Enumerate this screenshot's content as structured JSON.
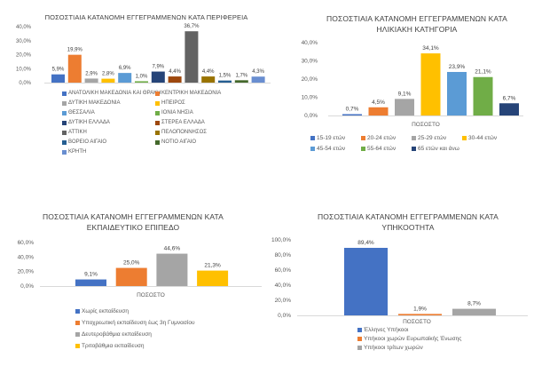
{
  "chart_data": [
    {
      "id": "region",
      "type": "bar",
      "title": "ΠΟΣΟΣΤΙΑΙΑ ΚΑΤΑΝΟΜΗ ΕΓΓΕΓΡΑΜΜΕΝΩΝ ΚΑΤΑ ΠΕΡΙΦΕΡΕΙΑ",
      "xlabel": "",
      "ylabel": "",
      "ylim": [
        0,
        40
      ],
      "yticks": [
        "0,0%",
        "10,0%",
        "20,0%",
        "30,0%",
        "40,0%"
      ],
      "grid": false,
      "legend_placement": "bottom",
      "categories": [
        "ΑΝΑΤΟΛΙΚΗ ΜΑΚΕΔΟΝΙΑ ΚΑΙ ΘΡΑΚΗ",
        "ΚΕΝΤΡΙΚΗ ΜΑΚΕΔΟΝΙΑ",
        "ΔΥΤΙΚΗ ΜΑΚΕΔΟΝΙΑ",
        "ΗΠΕΙΡΟΣ",
        "ΘΕΣΣΑΛΙΑ",
        "ΙΟΝΙΑ ΝΗΣΙΑ",
        "ΔΥΤΙΚΗ ΕΛΛΑΔΑ",
        "ΣΤΕΡΕΑ ΕΛΛΑΔΑ",
        "ΑΤΤΙΚΗ",
        "ΠΕΛΟΠΟΝΝΗΣΟΣ",
        "ΒΟΡΕΙΟ ΑΙΓΑΙΟ",
        "ΝΟΤΙΟ ΑΙΓΑΙΟ",
        "ΚΡΗΤΗ"
      ],
      "values": [
        5.9,
        19.9,
        2.9,
        2.8,
        6.9,
        1.0,
        7.9,
        4.4,
        36.7,
        4.4,
        1.5,
        1.7,
        4.3
      ],
      "labels": [
        "5,9%",
        "19,9%",
        "2,9%",
        "2,8%",
        "6,9%",
        "1,0%",
        "7,9%",
        "4,4%",
        "36,7%",
        "4,4%",
        "1,5%",
        "1,7%",
        "4,3%"
      ],
      "colors": [
        "#4472c4",
        "#ed7d31",
        "#a5a5a5",
        "#ffc000",
        "#5b9bd5",
        "#70ad47",
        "#264478",
        "#9e480e",
        "#636363",
        "#997300",
        "#255e91",
        "#43682b",
        "#698ed0"
      ]
    },
    {
      "id": "age",
      "type": "bar",
      "title": "ΠΟΣΟΣΤΙΑΙΑ ΚΑΤΑΝΟΜΗ ΕΓΓΕΓΡΑΜΜΕΝΩΝ ΚΑΤΑ ΗΛΙΚΙΑΚΗ ΚΑΤΗΓΟΡΙΑ",
      "title_lines": [
        "ΠΟΣΟΣΤΙΑΙΑ ΚΑΤΑΝΟΜΗ ΕΓΓΕΓΡΑΜΜΕΝΩΝ  ΚΑΤΑ",
        "ΗΛΙΚΙΑΚΗ ΚΑΤΗΓΟΡΙΑ"
      ],
      "xlabel": "ΠΟΣΟΣΤΟ",
      "ylabel": "",
      "ylim": [
        0,
        40
      ],
      "yticks": [
        "0,0%",
        "10,0%",
        "20,0%",
        "30,0%",
        "40,0%"
      ],
      "grid": false,
      "legend_placement": "bottom",
      "categories": [
        "15-19 ετών",
        "20-24 ετών",
        "25-29 ετών",
        "30-44 ετών",
        "45-54 ετών",
        "55-64 ετών",
        "65 ετών και άνω"
      ],
      "values": [
        0.7,
        4.5,
        9.1,
        34.1,
        23.9,
        21.1,
        6.7
      ],
      "labels": [
        "0,7%",
        "4,5%",
        "9,1%",
        "34,1%",
        "23,9%",
        "21,1%",
        "6,7%"
      ],
      "colors": [
        "#4472c4",
        "#ed7d31",
        "#a5a5a5",
        "#ffc000",
        "#5b9bd5",
        "#70ad47",
        "#264478"
      ]
    },
    {
      "id": "education",
      "type": "bar",
      "title": "ΠΟΣΟΣΤΙΑΙΑ ΚΑΤΑΝΟΜΗ ΕΓΓΕΓΡΑΜΜΕΝΩΝ ΚΑΤΑ ΕΚΠΑΙΔΕΥΤΙΚΟ ΕΠΙΠΕΔΟ",
      "title_lines": [
        "ΠΟΣΟΣΤΙΑΙΑ ΚΑΤΑΝΟΜΗ ΕΓΓΕΓΡΑΜΜΕΝΩΝ ΚΑΤΑ",
        "ΕΚΠΑΙΔΕΥΤΙΚΟ ΕΠΙΠΕΔΟ"
      ],
      "xlabel": "ΠΟΣΟΣΤΟ",
      "ylabel": "",
      "ylim": [
        0,
        60
      ],
      "yticks": [
        "0,0%",
        "20,0%",
        "40,0%",
        "60,0%"
      ],
      "grid": false,
      "legend_placement": "bottom",
      "categories": [
        "Χωρίς εκπαίδευση",
        "Υποχρεωτική εκπαίδευση έως 3η Γυμνασίου",
        "Δευτεροβάθμια εκπαίδευση",
        "Τριτοβάθμια εκπαίδευση"
      ],
      "values": [
        9.1,
        25.0,
        44.6,
        21.3
      ],
      "labels": [
        "9,1%",
        "25,0%",
        "44,6%",
        "21,3%"
      ],
      "colors": [
        "#4472c4",
        "#ed7d31",
        "#a5a5a5",
        "#ffc000"
      ]
    },
    {
      "id": "citizenship",
      "type": "bar",
      "title": "ΠΟΣΟΣΤΙΑΙΑ ΚΑΤΑΝΟΜΗ ΕΓΓΕΓΡΑΜΜΕΝΩΝ ΚΑΤΑ ΥΠΗΚΟΟΤΗΤΑ",
      "title_lines": [
        "ΠΟΣΟΣΤΙΑΙΑ ΚΑΤΑΝΟΜΗ  ΕΓΓΕΓΡΑΜΜΕΝΩΝ ΚΑΤΑ",
        "ΥΠΗΚΟΟΤΗΤΑ"
      ],
      "xlabel": "ΠΟΣΟΣΤΟ",
      "ylabel": "",
      "ylim": [
        0,
        100
      ],
      "yticks": [
        "0,0%",
        "20,0%",
        "40,0%",
        "60,0%",
        "80,0%",
        "100,0%"
      ],
      "grid": false,
      "legend_placement": "bottom",
      "categories": [
        "Έλληνες Υπήκοοι",
        "Υπήκοοι χωρών Ευρωπαϊκής Ένωσης",
        "Υπήκοοι τρίτων χωρών"
      ],
      "values": [
        89.4,
        1.9,
        8.7
      ],
      "labels": [
        "89,4%",
        "1,9%",
        "8,7%"
      ],
      "colors": [
        "#4472c4",
        "#ed7d31",
        "#a5a5a5"
      ]
    }
  ]
}
